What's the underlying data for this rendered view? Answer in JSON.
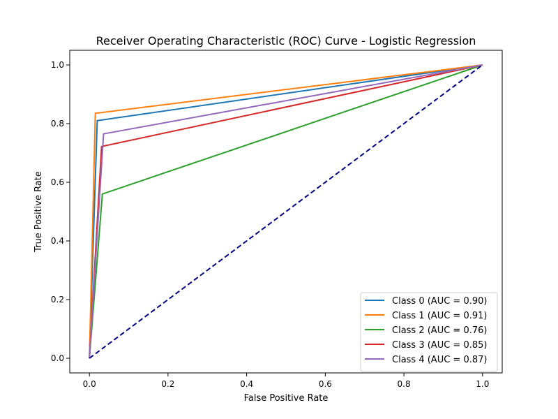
{
  "chart_data": {
    "type": "line",
    "title": "Receiver Operating Characteristic (ROC) Curve - Logistic Regression",
    "xlabel": "False Positive Rate",
    "ylabel": "True Positive Rate",
    "xlim": [
      -0.05,
      1.05
    ],
    "ylim": [
      -0.05,
      1.05
    ],
    "xticks": [
      "0.0",
      "0.2",
      "0.4",
      "0.6",
      "0.8",
      "1.0"
    ],
    "yticks": [
      "0.0",
      "0.2",
      "0.4",
      "0.6",
      "0.8",
      "1.0"
    ],
    "grid": false,
    "legend_position": "lower-right",
    "series": [
      {
        "name": "Class 0 (AUC = 0.90)",
        "color": "#1f77b4",
        "x": [
          0,
          0.02,
          1
        ],
        "y": [
          0,
          0.81,
          1
        ]
      },
      {
        "name": "Class 1 (AUC = 0.91)",
        "color": "#ff7f0e",
        "x": [
          0,
          0.015,
          1
        ],
        "y": [
          0,
          0.835,
          1
        ]
      },
      {
        "name": "Class 2 (AUC = 0.76)",
        "color": "#2ca02c",
        "x": [
          0,
          0.033,
          1
        ],
        "y": [
          0,
          0.56,
          1
        ]
      },
      {
        "name": "Class 3 (AUC = 0.85)",
        "color": "#d62728",
        "x": [
          0,
          0.031,
          1
        ],
        "y": [
          0,
          0.722,
          1
        ]
      },
      {
        "name": "Class 4 (AUC = 0.87)",
        "color": "#9467bd",
        "x": [
          0,
          0.036,
          1
        ],
        "y": [
          0,
          0.765,
          1
        ]
      }
    ],
    "reference_line": {
      "color": "#000080",
      "style": "dashed",
      "x": [
        0,
        1
      ],
      "y": [
        0,
        1
      ]
    }
  }
}
